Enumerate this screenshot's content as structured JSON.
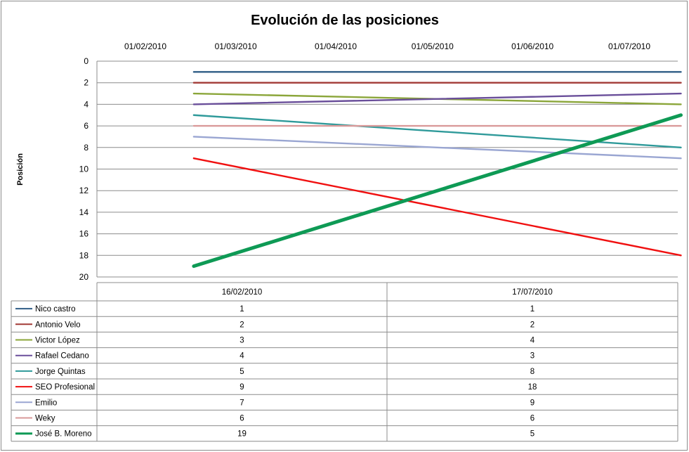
{
  "chart_data": {
    "type": "line",
    "title": "Evolución de las posiciones",
    "ylabel": "Posición",
    "xlabel": "",
    "x_tick_labels": [
      "01/02/2010",
      "01/03/2010",
      "01/04/2010",
      "01/05/2010",
      "01/06/2010",
      "01/07/2010"
    ],
    "x_tick_dates": [
      "2010-02-01",
      "2010-03-01",
      "2010-04-01",
      "2010-05-01",
      "2010-06-01",
      "2010-07-01"
    ],
    "y_ticks": [
      0,
      2,
      4,
      6,
      8,
      10,
      12,
      14,
      16,
      18,
      20
    ],
    "ylim": [
      0,
      20
    ],
    "y_reversed": true,
    "grid": true,
    "x": [
      "2010-02-16",
      "2010-07-17"
    ],
    "table_headers": [
      "16/02/2010",
      "17/07/2010"
    ],
    "series": [
      {
        "name": "Nico castro",
        "color": "#2f5d86",
        "values": [
          1,
          1
        ]
      },
      {
        "name": "Antonio Velo",
        "color": "#a23a36",
        "values": [
          2,
          2
        ]
      },
      {
        "name": "Victor López",
        "color": "#8ba63a",
        "values": [
          3,
          4
        ]
      },
      {
        "name": "Rafael Cedano",
        "color": "#6a4f9a",
        "values": [
          4,
          3
        ]
      },
      {
        "name": "Jorge Quintas",
        "color": "#2f9a9a",
        "values": [
          5,
          8
        ]
      },
      {
        "name": "SEO Profesional",
        "color": "#f01010",
        "values": [
          9,
          18
        ]
      },
      {
        "name": "Emilio",
        "color": "#9aa6d2",
        "values": [
          7,
          9
        ]
      },
      {
        "name": "Weky",
        "color": "#d99a9a",
        "values": [
          6,
          6
        ]
      },
      {
        "name": "José B. Moreno",
        "color": "#0e9a55",
        "values": [
          19,
          5
        ],
        "emphasis": true
      }
    ]
  }
}
